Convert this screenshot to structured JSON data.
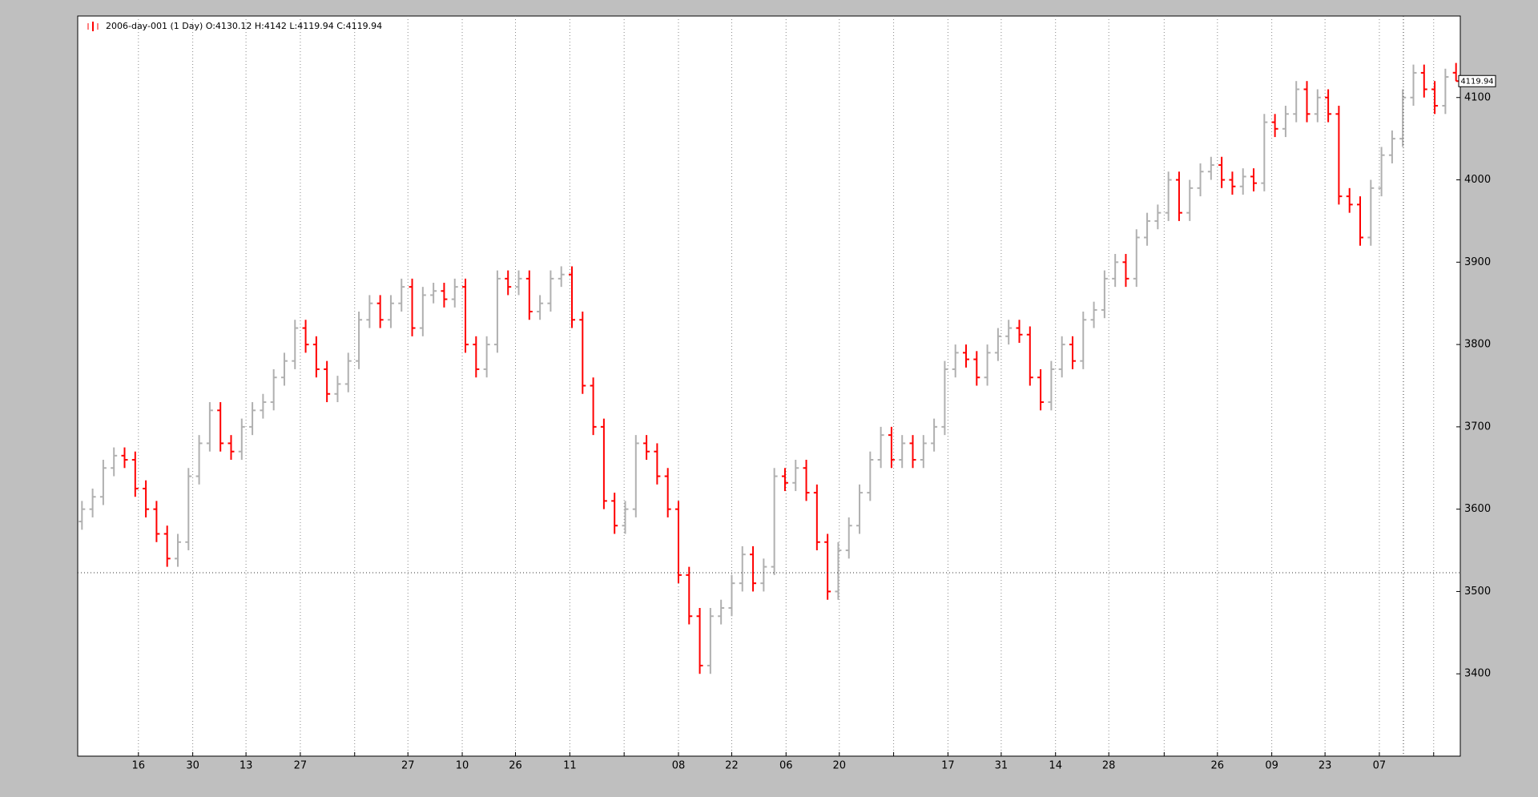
{
  "chart_data": {
    "type": "ohlc",
    "legend": "2006-day-001 (1 Day) O:4130.12 H:4142 L:4119.94 C:4119.94",
    "up_color": "#b0b0b0",
    "down_color": "#ff0000",
    "grid": true,
    "xlim": [
      -0.4,
      129.4
    ],
    "ylim": [
      3300,
      4199
    ],
    "yticks": [
      3400,
      3500,
      3600,
      3700,
      3800,
      3900,
      4000,
      4100
    ],
    "xticks": [
      {
        "value": 5.3,
        "label": "16"
      },
      {
        "value": 10.4,
        "label": "30"
      },
      {
        "value": 15.4,
        "label": "13"
      },
      {
        "value": 20.5,
        "label": "27"
      },
      {
        "value": 25.6,
        "label": null
      },
      {
        "value": 30.6,
        "label": "27"
      },
      {
        "value": 35.7,
        "label": "10"
      },
      {
        "value": 40.7,
        "label": "26"
      },
      {
        "value": 45.8,
        "label": "11"
      },
      {
        "value": 50.9,
        "label": null
      },
      {
        "value": 56,
        "label": "08"
      },
      {
        "value": 61,
        "label": "22"
      },
      {
        "value": 66.1,
        "label": "06"
      },
      {
        "value": 71.1,
        "label": "20"
      },
      {
        "value": 76.2,
        "label": null
      },
      {
        "value": 81.3,
        "label": "17"
      },
      {
        "value": 86.3,
        "label": "31"
      },
      {
        "value": 91.4,
        "label": "14"
      },
      {
        "value": 96.4,
        "label": "28"
      },
      {
        "value": 101.6,
        "label": null
      },
      {
        "value": 106.6,
        "label": "26"
      },
      {
        "value": 111.7,
        "label": "09"
      },
      {
        "value": 116.7,
        "label": "23"
      },
      {
        "value": 121.8,
        "label": "07"
      },
      {
        "value": 126.9,
        "label": null
      }
    ],
    "open": [
      3585,
      3600,
      3615,
      3650,
      3665,
      3660,
      3625,
      3600,
      3570,
      3540,
      3560,
      3640,
      3680,
      3720,
      3680,
      3670,
      3700,
      3720,
      3730,
      3760,
      3780,
      3820,
      3800,
      3770,
      3740,
      3752,
      3780,
      3830,
      3850,
      3830,
      3850,
      3870,
      3820,
      3860,
      3865,
      3855,
      3870,
      3800,
      3770,
      3800,
      3880,
      3870,
      3880,
      3840,
      3850,
      3880,
      3885,
      3830,
      3750,
      3700,
      3610,
      3580,
      3600,
      3680,
      3670,
      3640,
      3600,
      3520,
      3470,
      3410,
      3470,
      3480,
      3510,
      3545,
      3510,
      3530,
      3640,
      3632,
      3650,
      3620,
      3560,
      3500,
      3550,
      3580,
      3620,
      3660,
      3690,
      3660,
      3680,
      3660,
      3680,
      3700,
      3770,
      3790,
      3782,
      3760,
      3790,
      3810,
      3820,
      3812,
      3760,
      3730,
      3770,
      3800,
      3780,
      3830,
      3842,
      3880,
      3900,
      3880,
      3930,
      3950,
      3960,
      4000,
      3960,
      3990,
      4010,
      4018,
      4000,
      3992,
      4004,
      3996,
      4070,
      4062,
      4080,
      4110,
      4080,
      4100,
      4080,
      3980,
      3970,
      3930,
      3990,
      4030,
      4050,
      4100,
      4130,
      4110,
      4090,
      4130.12
    ],
    "high": [
      3610,
      3625,
      3660,
      3675,
      3675,
      3670,
      3635,
      3610,
      3580,
      3570,
      3650,
      3690,
      3730,
      3730,
      3690,
      3710,
      3730,
      3740,
      3770,
      3790,
      3830,
      3830,
      3810,
      3780,
      3762,
      3790,
      3840,
      3860,
      3860,
      3860,
      3880,
      3880,
      3870,
      3875,
      3875,
      3880,
      3880,
      3810,
      3810,
      3890,
      3890,
      3890,
      3890,
      3860,
      3890,
      3895,
      3895,
      3840,
      3760,
      3710,
      3620,
      3610,
      3690,
      3690,
      3680,
      3650,
      3610,
      3530,
      3480,
      3480,
      3490,
      3520,
      3555,
      3555,
      3540,
      3650,
      3650,
      3660,
      3660,
      3630,
      3570,
      3560,
      3590,
      3630,
      3670,
      3700,
      3700,
      3690,
      3690,
      3690,
      3710,
      3780,
      3800,
      3800,
      3792,
      3800,
      3820,
      3830,
      3830,
      3822,
      3770,
      3780,
      3810,
      3810,
      3840,
      3852,
      3890,
      3910,
      3910,
      3940,
      3960,
      3970,
      4010,
      4010,
      4000,
      4020,
      4028,
      4028,
      4010,
      4014,
      4014,
      4080,
      4080,
      4090,
      4120,
      4120,
      4110,
      4110,
      4090,
      3990,
      3980,
      4000,
      4040,
      4060,
      4110,
      4140,
      4140,
      4120,
      4135,
      4142
    ],
    "low": [
      3575,
      3590,
      3605,
      3640,
      3650,
      3615,
      3590,
      3560,
      3530,
      3530,
      3550,
      3630,
      3670,
      3670,
      3660,
      3660,
      3690,
      3710,
      3720,
      3750,
      3770,
      3790,
      3760,
      3730,
      3730,
      3742,
      3770,
      3820,
      3820,
      3820,
      3840,
      3810,
      3810,
      3850,
      3845,
      3845,
      3790,
      3760,
      3760,
      3790,
      3860,
      3860,
      3830,
      3830,
      3840,
      3870,
      3820,
      3740,
      3690,
      3600,
      3570,
      3570,
      3590,
      3660,
      3630,
      3590,
      3510,
      3460,
      3400,
      3400,
      3460,
      3470,
      3500,
      3500,
      3500,
      3520,
      3622,
      3622,
      3610,
      3550,
      3490,
      3490,
      3540,
      3570,
      3610,
      3650,
      3650,
      3650,
      3650,
      3650,
      3670,
      3690,
      3760,
      3772,
      3750,
      3750,
      3780,
      3800,
      3802,
      3750,
      3720,
      3720,
      3760,
      3770,
      3770,
      3820,
      3832,
      3870,
      3870,
      3870,
      3920,
      3940,
      3950,
      3950,
      3950,
      3980,
      4000,
      3990,
      3982,
      3982,
      3986,
      3986,
      4052,
      4052,
      4070,
      4070,
      4070,
      4070,
      3970,
      3960,
      3920,
      3920,
      3980,
      4020,
      4040,
      4090,
      4100,
      4080,
      4080,
      4119.94
    ],
    "close": [
      3600,
      3615,
      3650,
      3665,
      3660,
      3625,
      3600,
      3570,
      3540,
      3560,
      3640,
      3680,
      3720,
      3680,
      3670,
      3700,
      3720,
      3730,
      3760,
      3780,
      3820,
      3800,
      3770,
      3740,
      3752,
      3780,
      3830,
      3850,
      3830,
      3850,
      3870,
      3820,
      3860,
      3865,
      3855,
      3870,
      3800,
      3770,
      3800,
      3880,
      3870,
      3880,
      3840,
      3850,
      3880,
      3885,
      3830,
      3750,
      3700,
      3610,
      3580,
      3600,
      3680,
      3670,
      3640,
      3600,
      3520,
      3470,
      3410,
      3470,
      3480,
      3510,
      3545,
      3510,
      3530,
      3640,
      3632,
      3650,
      3620,
      3560,
      3500,
      3550,
      3580,
      3620,
      3660,
      3690,
      3660,
      3680,
      3660,
      3680,
      3700,
      3770,
      3790,
      3782,
      3760,
      3790,
      3810,
      3820,
      3812,
      3760,
      3730,
      3770,
      3800,
      3780,
      3830,
      3842,
      3880,
      3900,
      3880,
      3930,
      3950,
      3960,
      4000,
      3960,
      3990,
      4010,
      4018,
      4000,
      3992,
      4004,
      3996,
      4070,
      4062,
      4080,
      4110,
      4080,
      4100,
      4080,
      3980,
      3970,
      3930,
      3990,
      4030,
      4050,
      4100,
      4130,
      4110,
      4090,
      4125,
      4119.94
    ]
  }
}
